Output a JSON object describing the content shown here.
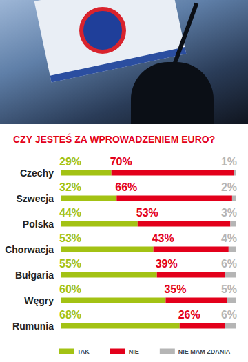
{
  "chart_data": {
    "type": "bar",
    "title": "CZY JESTEŚ ZA WPROWADZENIEM EURO?",
    "categories": [
      "Czechy",
      "Szwecja",
      "Polska",
      "Chorwacja",
      "Bułgaria",
      "Węgry",
      "Rumunia"
    ],
    "series": [
      {
        "name": "TAK",
        "color": "#a3c214",
        "values": [
          29,
          32,
          44,
          53,
          55,
          60,
          68
        ],
        "value_labels": [
          "29%",
          "32%",
          "44%",
          "53%",
          "55%",
          "60%",
          "68%"
        ]
      },
      {
        "name": "NIE",
        "color": "#e3001b",
        "values": [
          70,
          66,
          53,
          43,
          39,
          35,
          26
        ],
        "value_labels": [
          "70%",
          "66%",
          "53%",
          "43%",
          "39%",
          "35%",
          "26%"
        ]
      },
      {
        "name": "NIE MAM ZDANIA",
        "color": "#b5b5b5",
        "values": [
          1,
          2,
          3,
          4,
          6,
          5,
          6
        ],
        "value_labels": [
          "1%",
          "2%",
          "3%",
          "4%",
          "6%",
          "5%",
          "6%"
        ]
      }
    ],
    "xlim": [
      0,
      100
    ],
    "orientation": "horizontal",
    "stacked": true,
    "data_labels": true,
    "tick_labels": "y",
    "grid": false,
    "legend": "bottom"
  }
}
